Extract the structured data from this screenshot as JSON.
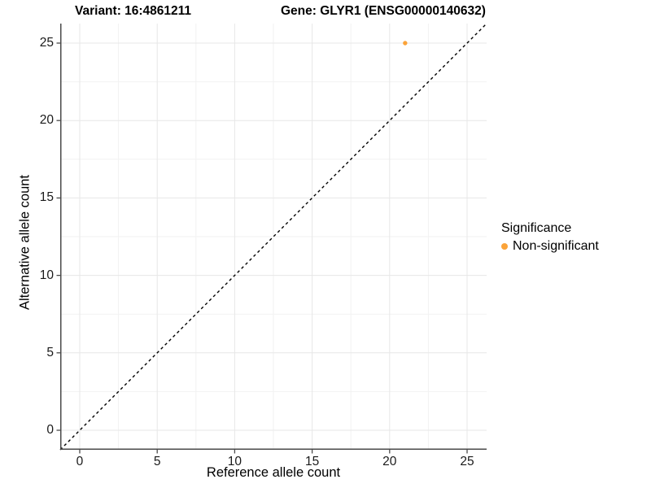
{
  "header": {
    "variant_title": "Variant: 16:4861211",
    "gene_title": "Gene: GLYR1 (ENSG00000140632)"
  },
  "axes": {
    "x_label": "Reference allele count",
    "y_label": "Alternative allele count"
  },
  "legend": {
    "title": "Significance",
    "items": [
      {
        "label": "Non-significant",
        "color": "#FBA339"
      }
    ]
  },
  "chart_data": {
    "type": "scatter",
    "title": "Variant: 16:4861211  Gene: GLYR1 (ENSG00000140632)",
    "xlabel": "Reference allele count",
    "ylabel": "Alternative allele count",
    "points": [
      {
        "x": 21,
        "y": 25,
        "series": "Non-significant",
        "color": "#FBA339"
      }
    ],
    "reference_line": {
      "type": "abline",
      "slope": 1,
      "intercept": 0,
      "style": "dashed",
      "color": "#000000"
    },
    "x_ticks": [
      0,
      5,
      10,
      15,
      20,
      25
    ],
    "y_ticks": [
      0,
      5,
      10,
      15,
      20,
      25
    ],
    "x_minor_ticks": [
      2.5,
      7.5,
      12.5,
      17.5,
      22.5
    ],
    "y_minor_ticks": [
      2.5,
      7.5,
      12.5,
      17.5,
      22.5
    ],
    "xlim": [
      -1.26,
      26.26
    ],
    "ylim": [
      -1.26,
      26.26
    ],
    "grid": true,
    "legend_position": "right",
    "point_radius_px": 2.7,
    "colors": {
      "grid_major": "#e7e7e7",
      "grid_minor": "#f2f2f2",
      "axis_line": "#4a4a4a",
      "tick_mark": "#4a4a4a"
    }
  }
}
